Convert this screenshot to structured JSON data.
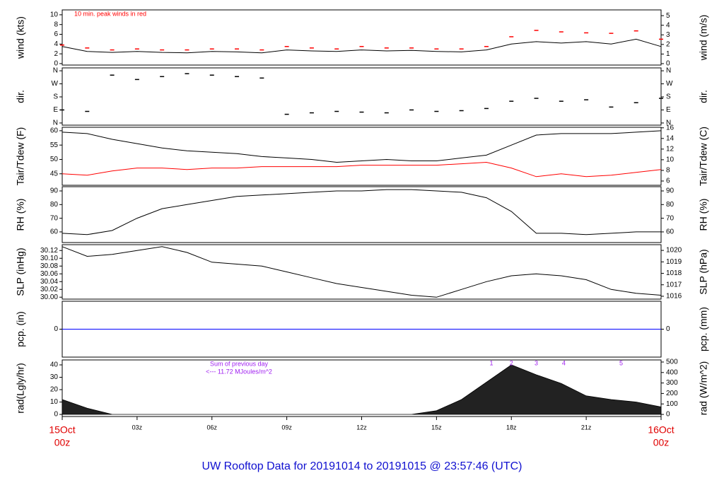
{
  "title": "UW Rooftop Data for 20191014  to  20191015 @ 23:57:46  (UTC)",
  "chart_data": [
    {
      "type": "line",
      "y_label": "wind (kts)",
      "y2_label": "wind (m/s)",
      "annotation": "10 min. peak winds in red",
      "x": [
        0,
        1,
        2,
        3,
        4,
        5,
        6,
        7,
        8,
        9,
        10,
        11,
        12,
        13,
        14,
        15,
        16,
        17,
        18,
        19,
        20,
        21,
        22,
        23,
        24
      ],
      "series": [
        {
          "name": "wind",
          "color": "#000000",
          "style": "line",
          "values": [
            3.5,
            2.5,
            2.3,
            2.5,
            2.3,
            2.2,
            2.5,
            2.4,
            2.2,
            2.8,
            2.6,
            2.5,
            2.8,
            2.6,
            2.7,
            2.5,
            2.4,
            2.8,
            4.0,
            4.5,
            4.2,
            4.5,
            4.0,
            5.0,
            3.5
          ]
        },
        {
          "name": "peak",
          "color": "#ff0000",
          "style": "dash",
          "values": [
            3.8,
            3.2,
            2.8,
            3.0,
            2.8,
            2.8,
            3.0,
            3.0,
            2.8,
            3.5,
            3.2,
            3.0,
            3.5,
            3.2,
            3.2,
            3.0,
            3.0,
            3.5,
            5.5,
            6.8,
            6.5,
            6.3,
            6.2,
            6.7,
            5.0
          ]
        }
      ],
      "ylim": [
        -0.3,
        11
      ],
      "yticks": [
        0,
        2,
        4,
        6,
        8,
        10
      ],
      "y2lim": [
        -0.15,
        5.6
      ],
      "y2ticks": [
        0,
        1,
        2,
        3,
        4,
        5
      ]
    },
    {
      "type": "scatter",
      "y_label": "dir.",
      "y2_label": "dir.",
      "x": [
        0,
        1,
        2,
        3,
        4,
        5,
        6,
        7,
        8,
        9,
        10,
        11,
        12,
        13,
        14,
        15,
        16,
        17,
        18,
        19,
        20,
        21,
        22,
        23,
        24
      ],
      "series": [
        {
          "name": "dir",
          "color": "#000000",
          "values": [
            90,
            80,
            330,
            300,
            320,
            340,
            330,
            320,
            310,
            60,
            70,
            80,
            75,
            70,
            90,
            80,
            85,
            100,
            150,
            170,
            150,
            160,
            110,
            140,
            170
          ]
        }
      ],
      "ylim": [
        -15,
        380
      ],
      "yticks": [
        {
          "value": 0,
          "label": "N"
        },
        {
          "value": 90,
          "label": "E"
        },
        {
          "value": 180,
          "label": "S"
        },
        {
          "value": 270,
          "label": "W"
        },
        {
          "value": 360,
          "label": "N"
        }
      ],
      "y2lim": [
        -15,
        380
      ],
      "y2ticks": [
        {
          "value": 0,
          "label": "N"
        },
        {
          "value": 90,
          "label": "E"
        },
        {
          "value": 180,
          "label": "S"
        },
        {
          "value": 270,
          "label": "W"
        },
        {
          "value": 360,
          "label": "N"
        }
      ]
    },
    {
      "type": "line",
      "y_label": "Tair/Tdew (F)",
      "y2_label": "Tair/Tdew (C)",
      "x": [
        0,
        1,
        2,
        3,
        4,
        5,
        6,
        7,
        8,
        9,
        10,
        11,
        12,
        13,
        14,
        15,
        16,
        17,
        18,
        19,
        20,
        21,
        22,
        23,
        24
      ],
      "series": [
        {
          "name": "Tair",
          "color": "#000000",
          "style": "line",
          "values": [
            59.5,
            59,
            57,
            55.5,
            54,
            53,
            52.5,
            52,
            51,
            50.5,
            50,
            49,
            49.5,
            50,
            49.5,
            49.5,
            50.5,
            51.5,
            55,
            58.5,
            59,
            59,
            59,
            59.5,
            60
          ]
        },
        {
          "name": "Tdew",
          "color": "#ff0000",
          "style": "line",
          "values": [
            45,
            44.5,
            46,
            47,
            47,
            46.5,
            47,
            47,
            47.5,
            47.5,
            47.5,
            47.5,
            48,
            48,
            48,
            48,
            48.5,
            49,
            47,
            44,
            45,
            44,
            44.5,
            45.5,
            46.5
          ]
        }
      ],
      "ylim": [
        41,
        61.2
      ],
      "yticks": [
        45,
        50,
        55,
        60
      ],
      "y2lim": [
        5.2,
        16.1
      ],
      "y2ticks": [
        6,
        8,
        10,
        12,
        14,
        16
      ]
    },
    {
      "type": "line",
      "y_label": "RH (%)",
      "y2_label": "RH (%)",
      "x": [
        0,
        1,
        2,
        3,
        4,
        5,
        6,
        7,
        8,
        9,
        10,
        11,
        12,
        13,
        14,
        15,
        16,
        17,
        18,
        19,
        20,
        21,
        22,
        23,
        24
      ],
      "series": [
        {
          "name": "RH",
          "color": "#000000",
          "style": "line",
          "values": [
            59,
            58,
            61,
            70,
            77,
            80,
            83,
            86,
            87,
            88,
            89,
            90,
            90,
            91,
            91,
            90,
            89,
            85,
            75,
            59,
            59,
            58,
            59,
            60,
            60
          ]
        }
      ],
      "ylim": [
        52.2,
        93.1
      ],
      "yticks": [
        60,
        70,
        80,
        90
      ],
      "y2lim": [
        52.2,
        93.1
      ],
      "y2ticks": [
        60,
        70,
        80,
        90
      ]
    },
    {
      "type": "line",
      "y_label": "SLP (inHg)",
      "y2_label": "SLP (hPa)",
      "x": [
        0,
        1,
        2,
        3,
        4,
        5,
        6,
        7,
        8,
        9,
        10,
        11,
        12,
        13,
        14,
        15,
        16,
        17,
        18,
        19,
        20,
        21,
        22,
        23,
        24
      ],
      "series": [
        {
          "name": "SLP",
          "color": "#000000",
          "style": "line",
          "values": [
            30.13,
            30.105,
            30.11,
            30.12,
            30.13,
            30.115,
            30.09,
            30.085,
            30.08,
            30.065,
            30.05,
            30.035,
            30.025,
            30.015,
            30.005,
            30.0,
            30.02,
            30.04,
            30.055,
            30.06,
            30.055,
            30.045,
            30.02,
            30.01,
            30.005
          ]
        }
      ],
      "ylim": [
        29.995,
        30.135
      ],
      "yticks": [
        {
          "value": 30.0,
          "label": "30.00"
        },
        30.02,
        30.04,
        30.06,
        30.08,
        {
          "value": 30.1,
          "label": "30.10"
        },
        30.12
      ],
      "y2lim": [
        1015.75,
        1020.5
      ],
      "y2ticks": [
        1016,
        1017,
        1018,
        1019,
        1020
      ]
    },
    {
      "type": "line",
      "y_label": "pcp. (in)",
      "y2_label": "pcp. (mm)",
      "x": [
        0,
        1,
        2,
        3,
        4,
        5,
        6,
        7,
        8,
        9,
        10,
        11,
        12,
        13,
        14,
        15,
        16,
        17,
        18,
        19,
        20,
        21,
        22,
        23,
        24
      ],
      "series": [
        {
          "name": "pcp",
          "color": "#0000ff",
          "style": "line",
          "values": [
            0,
            0,
            0,
            0,
            0,
            0,
            0,
            0,
            0,
            0,
            0,
            0,
            0,
            0,
            0,
            0,
            0,
            0,
            0,
            0,
            0,
            0,
            0,
            0,
            0
          ]
        }
      ],
      "ylim": [
        -1,
        1
      ],
      "yticks": [
        0
      ],
      "y2lim": [
        -1,
        1
      ],
      "y2ticks": [
        0
      ]
    },
    {
      "type": "area",
      "y_label": "rad(Lgly/hr)",
      "y2_label": "rad (W/m^2)",
      "annotations": [
        "Sum of previous day",
        "<--- 11.72 MJoules/m^2"
      ],
      "peak_marks": [
        {
          "value": 17.2,
          "label": "1"
        },
        {
          "value": 18.0,
          "label": "2"
        },
        {
          "value": 19.0,
          "label": "3"
        },
        {
          "value": 20.1,
          "label": "4"
        },
        {
          "value": 22.4,
          "label": "5"
        }
      ],
      "x": [
        0,
        1,
        2,
        3,
        4,
        5,
        6,
        7,
        8,
        9,
        10,
        11,
        12,
        13,
        14,
        15,
        16,
        17,
        18,
        19,
        20,
        21,
        22,
        23,
        24
      ],
      "series": [
        {
          "name": "rad",
          "color": "#222222",
          "values": [
            12,
            5,
            0,
            0,
            0,
            0,
            0,
            0,
            0,
            0,
            0,
            0,
            0,
            0,
            0,
            3,
            12,
            26,
            40,
            32,
            25,
            15,
            12,
            10,
            6
          ]
        }
      ],
      "ylim": [
        -1.7,
        44
      ],
      "yticks": [
        0,
        10,
        20,
        30,
        40
      ],
      "y2lim": [
        -20,
        520
      ],
      "y2ticks": [
        0,
        100,
        200,
        300,
        400,
        500
      ],
      "xlim": [
        0,
        24
      ],
      "xticks": [
        {
          "value": 0,
          "label": "00z"
        },
        {
          "value": 3,
          "label": "03z"
        },
        {
          "value": 6,
          "label": "06z"
        },
        {
          "value": 9,
          "label": "09z"
        },
        {
          "value": 12,
          "label": "12z"
        },
        {
          "value": 15,
          "label": "15z"
        },
        {
          "value": 18,
          "label": "18z"
        },
        {
          "value": 21,
          "label": "21z"
        },
        {
          "value": 24,
          "label": "00z"
        }
      ],
      "date_labels": [
        {
          "value": 0,
          "label": "15Oct"
        },
        {
          "value": 24,
          "label": "16Oct"
        }
      ]
    }
  ]
}
